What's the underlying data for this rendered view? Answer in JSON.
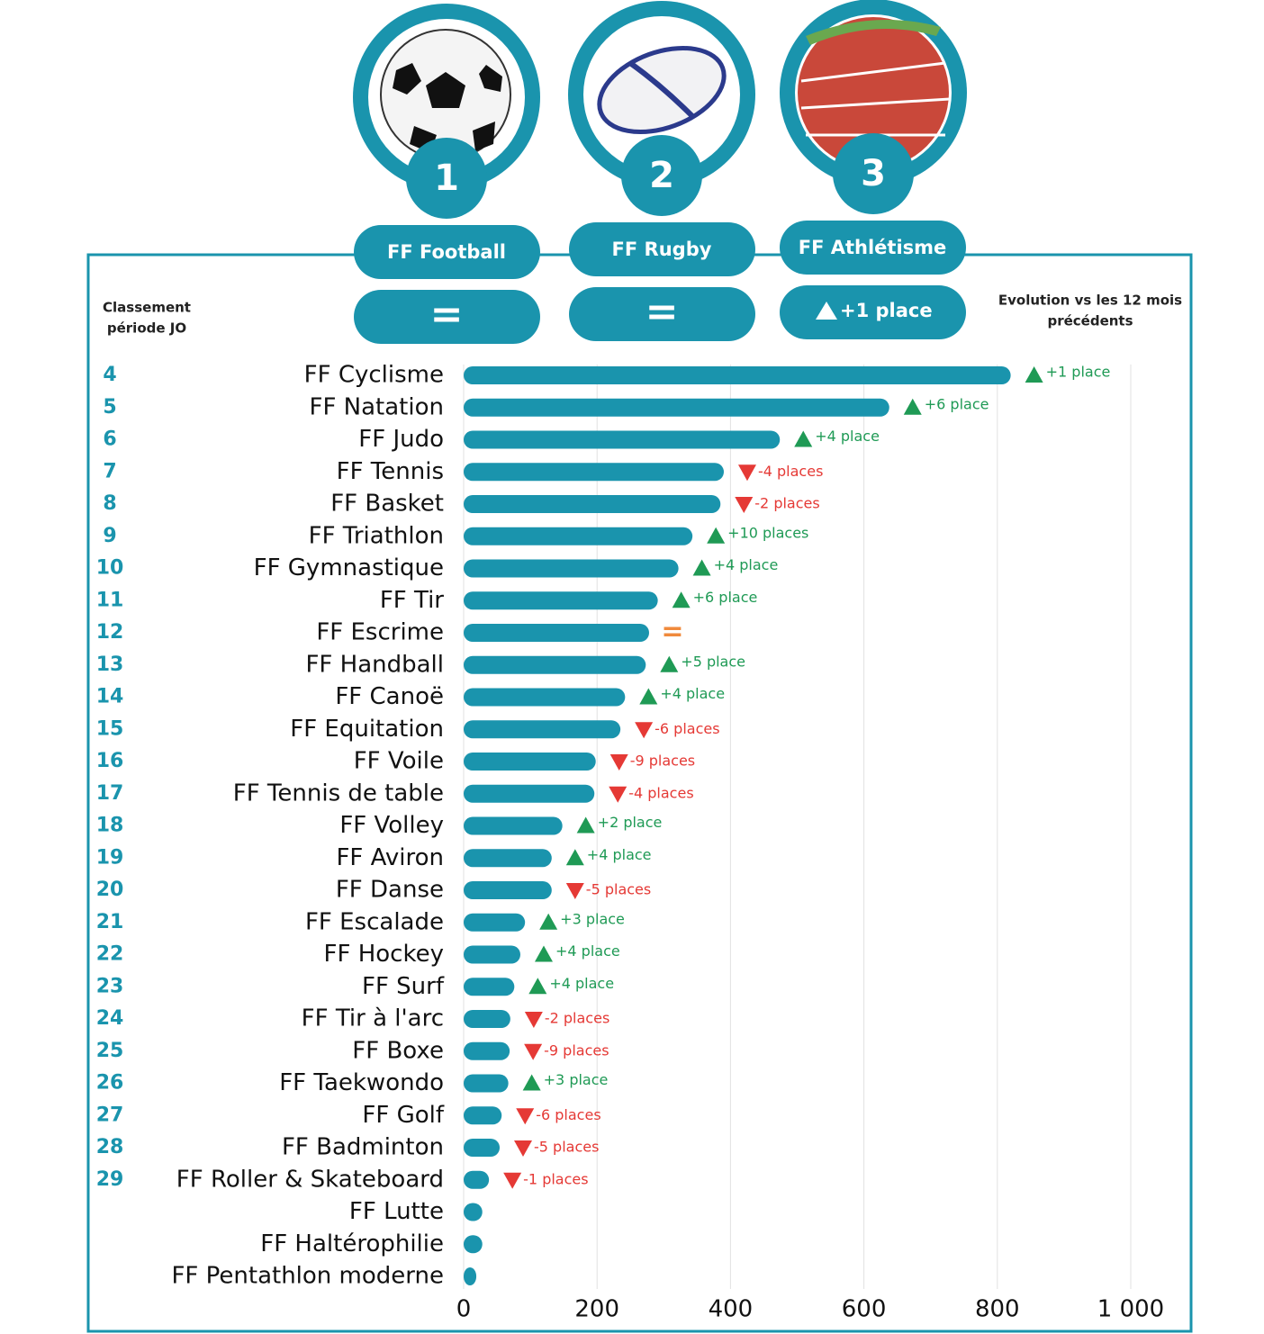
{
  "header": {
    "rank_heading": [
      "Classement",
      "période JO"
    ],
    "evolution_heading": [
      "Evolution vs les 12 mois",
      "précédents"
    ]
  },
  "podium": [
    {
      "rank": "1",
      "name": "FF Football",
      "evolution": "="
    },
    {
      "rank": "2",
      "name": "FF Rugby",
      "evolution": "="
    },
    {
      "rank": "3",
      "name": "FF Athlétisme",
      "evolution": "+1 place"
    }
  ],
  "chart_data": {
    "type": "bar",
    "orientation": "horizontal",
    "categories": [
      "FF Cyclisme",
      "FF Natation",
      "FF Judo",
      "FF Tennis",
      "FF Basket",
      "FF Triathlon",
      "FF Gymnastique",
      "FF Tir",
      "FF Escrime",
      "FF Handball",
      "FF Canoë",
      "FF Equitation",
      "FF Voile",
      "FF Tennis de table",
      "FF Volley",
      "FF Aviron",
      "FF Danse",
      "FF Escalade",
      "FF Hockey",
      "FF Surf",
      "FF Tir à l'arc",
      "FF Boxe",
      "FF Taekwondo",
      "FF Golf",
      "FF Badminton",
      "FF Roller & Skateboard",
      "FF Lutte",
      "FF Haltérophilie",
      "FF Pentathlon moderne"
    ],
    "values": [
      820,
      638,
      474,
      390,
      385,
      343,
      322,
      291,
      278,
      273,
      242,
      235,
      198,
      196,
      148,
      132,
      132,
      92,
      85,
      76,
      70,
      69,
      67,
      57,
      54,
      38,
      28,
      28,
      19
    ],
    "ranks": [
      4,
      5,
      6,
      7,
      8,
      9,
      10,
      11,
      12,
      13,
      14,
      15,
      16,
      17,
      18,
      19,
      20,
      21,
      22,
      23,
      24,
      25,
      26,
      27,
      28,
      29,
      null,
      null,
      null
    ],
    "evolution": [
      "+1 place",
      "+6 place",
      "+4 place",
      "-4 places",
      "-2 places",
      "+10 places",
      "+4 place",
      "+6 place",
      "=",
      "+5 place",
      "+4 place",
      "-6 places",
      "-9 places",
      "-4 places",
      "+2 place",
      "+4 place",
      "-5 places",
      "+3 place",
      "+4 place",
      "+4 place",
      "-2 places",
      "-9 places",
      "+3 place",
      "-6 places",
      "-5 places",
      "-1 places",
      null,
      null,
      null
    ],
    "color": "#1a94ad",
    "up_color": "#1f9a55",
    "down_color": "#e53935",
    "equal_color": "#f08a3c",
    "xlim": [
      0,
      1000
    ],
    "xticks": [
      0,
      200,
      400,
      600,
      800,
      {
        "value": 1000,
        "label": "1 000"
      }
    ],
    "grid": true
  }
}
